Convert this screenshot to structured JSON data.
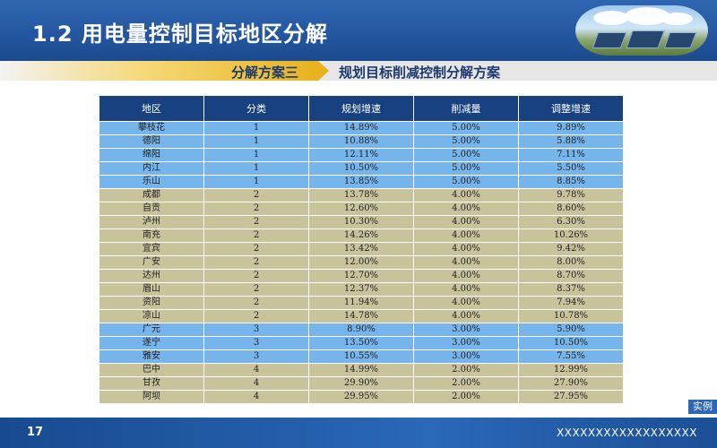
{
  "header": {
    "title": "1.2 用电量控制目标地区分解"
  },
  "section": {
    "scheme_label": "分解方案三",
    "scheme_title": "规划目标削减控制分解方案"
  },
  "table": {
    "columns": [
      "地区",
      "分类",
      "规划增速",
      "削减量",
      "调整增速"
    ],
    "rows": [
      {
        "region": "攀枝花",
        "category": "1",
        "planned": "14.89%",
        "reduction": "5.00%",
        "adjusted": "9.89%"
      },
      {
        "region": "德阳",
        "category": "1",
        "planned": "10.88%",
        "reduction": "5.00%",
        "adjusted": "5.88%"
      },
      {
        "region": "绵阳",
        "category": "1",
        "planned": "12.11%",
        "reduction": "5.00%",
        "adjusted": "7.11%"
      },
      {
        "region": "内江",
        "category": "1",
        "planned": "10.50%",
        "reduction": "5.00%",
        "adjusted": "5.50%"
      },
      {
        "region": "乐山",
        "category": "1",
        "planned": "13.85%",
        "reduction": "5.00%",
        "adjusted": "8.85%"
      },
      {
        "region": "成都",
        "category": "2",
        "planned": "13.78%",
        "reduction": "4.00%",
        "adjusted": "9.78%"
      },
      {
        "region": "自贡",
        "category": "2",
        "planned": "12.60%",
        "reduction": "4.00%",
        "adjusted": "8.60%"
      },
      {
        "region": "泸州",
        "category": "2",
        "planned": "10.30%",
        "reduction": "4.00%",
        "adjusted": "6.30%"
      },
      {
        "region": "南充",
        "category": "2",
        "planned": "14.26%",
        "reduction": "4.00%",
        "adjusted": "10.26%"
      },
      {
        "region": "宜宾",
        "category": "2",
        "planned": "13.42%",
        "reduction": "4.00%",
        "adjusted": "9.42%"
      },
      {
        "region": "广安",
        "category": "2",
        "planned": "12.00%",
        "reduction": "4.00%",
        "adjusted": "8.00%"
      },
      {
        "region": "达州",
        "category": "2",
        "planned": "12.70%",
        "reduction": "4.00%",
        "adjusted": "8.70%"
      },
      {
        "region": "眉山",
        "category": "2",
        "planned": "12.37%",
        "reduction": "4.00%",
        "adjusted": "8.37%"
      },
      {
        "region": "资阳",
        "category": "2",
        "planned": "11.94%",
        "reduction": "4.00%",
        "adjusted": "7.94%"
      },
      {
        "region": "凉山",
        "category": "2",
        "planned": "14.78%",
        "reduction": "4.00%",
        "adjusted": "10.78%"
      },
      {
        "region": "广元",
        "category": "3",
        "planned": "8.90%",
        "reduction": "3.00%",
        "adjusted": "5.90%"
      },
      {
        "region": "遂宁",
        "category": "3",
        "planned": "13.50%",
        "reduction": "3.00%",
        "adjusted": "10.50%"
      },
      {
        "region": "雅安",
        "category": "3",
        "planned": "10.55%",
        "reduction": "3.00%",
        "adjusted": "7.55%"
      },
      {
        "region": "巴中",
        "category": "4",
        "planned": "14.99%",
        "reduction": "2.00%",
        "adjusted": "12.99%"
      },
      {
        "region": "甘孜",
        "category": "4",
        "planned": "29.90%",
        "reduction": "2.00%",
        "adjusted": "27.90%"
      },
      {
        "region": "阿坝",
        "category": "4",
        "planned": "29.95%",
        "reduction": "2.00%",
        "adjusted": "27.95%"
      }
    ]
  },
  "tag": {
    "label": "实例"
  },
  "footer": {
    "page_number": "17",
    "mask_text": "XXXXXXXXXXXXXXXXXX"
  }
}
